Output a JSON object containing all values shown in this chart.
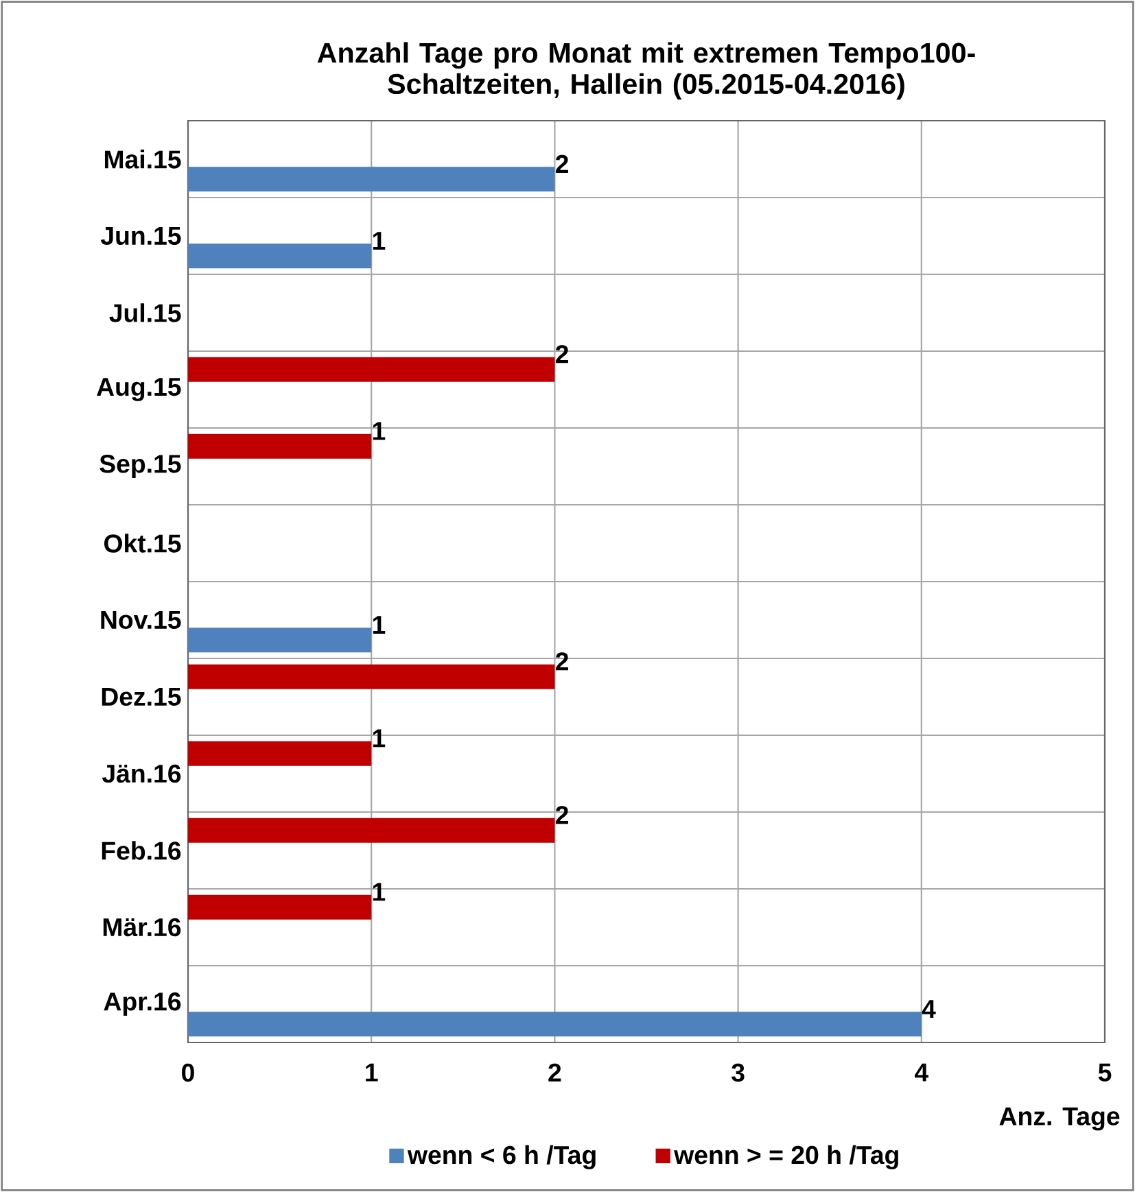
{
  "chart_data": {
    "type": "bar",
    "orientation": "horizontal",
    "title": "Anzahl Tage pro Monat mit extremen Tempo100-Schaltzeiten, Hallein  (05.2015-04.2016)",
    "xlabel": "Anz. Tage",
    "categories": [
      "Mai.15",
      "Jun.15",
      "Jul.15",
      "Aug.15",
      "Sep.15",
      "Okt.15",
      "Nov.15",
      "Dez.15",
      "Jän.16",
      "Feb.16",
      "Mär.16",
      "Apr.16"
    ],
    "series": [
      {
        "name": "wenn < 6 h /Tag",
        "color": "#4f81bd",
        "values": [
          2,
          1,
          null,
          null,
          null,
          null,
          1,
          null,
          null,
          null,
          null,
          4
        ]
      },
      {
        "name": "wenn > = 20 h /Tag",
        "color": "#c00000",
        "values": [
          null,
          null,
          null,
          2,
          1,
          null,
          null,
          2,
          1,
          2,
          1,
          null
        ]
      }
    ],
    "xlim": [
      0,
      5
    ],
    "xticks": [
      0,
      1,
      2,
      3,
      4,
      5
    ],
    "grid": true,
    "legend": "bottom",
    "data_labels": true
  }
}
